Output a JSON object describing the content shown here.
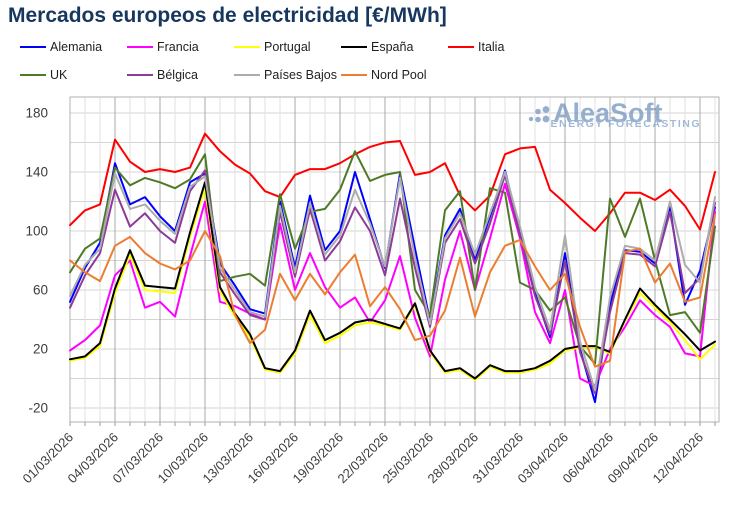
{
  "title": "Mercados europeos de electricidad [€/MWh]",
  "colors": {
    "title": "#17375E",
    "axis_text": "#3C3C3C",
    "grid_minor": "#E2E2E2",
    "grid_major_vertical": "#A8A8A8",
    "grid_horizontal": "#D4D4D4",
    "plot_border": "#B0B0B0",
    "watermark_text": "#7C9CC4",
    "watermark_subtitle": "#8AA8CD"
  },
  "watermark": {
    "name": "AleaSoft",
    "subtitle": "ENERGY FORECASTING"
  },
  "chart_data": {
    "type": "line",
    "title": "Mercados europeos de electricidad [€/MWh]",
    "xlabel": "",
    "ylabel": "€/MWh",
    "ylim": [
      -30,
      190
    ],
    "y_ticks": [
      -20,
      20,
      60,
      100,
      140,
      180
    ],
    "grid": true,
    "legend_position": "top",
    "x_tick_labels": [
      "01/03/2026",
      "04/03/2026",
      "07/03/2026",
      "10/03/2026",
      "13/03/2026",
      "16/03/2026",
      "19/03/2026",
      "22/03/2026",
      "25/03/2026",
      "28/03/2026",
      "31/03/2026",
      "03/04/2026",
      "06/04/2026",
      "09/04/2026",
      "12/04/2026"
    ],
    "x_dates": [
      "01/03/2026",
      "02/03/2026",
      "03/03/2026",
      "04/03/2026",
      "05/03/2026",
      "06/03/2026",
      "07/03/2026",
      "08/03/2026",
      "09/03/2026",
      "10/03/2026",
      "11/03/2026",
      "12/03/2026",
      "13/03/2026",
      "14/03/2026",
      "15/03/2026",
      "16/03/2026",
      "17/03/2026",
      "18/03/2026",
      "19/03/2026",
      "20/03/2026",
      "21/03/2026",
      "22/03/2026",
      "23/03/2026",
      "24/03/2026",
      "25/03/2026",
      "26/03/2026",
      "27/03/2026",
      "28/03/2026",
      "29/03/2026",
      "30/03/2026",
      "31/03/2026",
      "01/04/2026",
      "02/04/2026",
      "03/04/2026",
      "04/04/2026",
      "05/04/2026",
      "06/04/2026",
      "07/04/2026",
      "08/04/2026",
      "09/04/2026",
      "10/04/2026",
      "11/04/2026",
      "12/04/2026",
      "13/04/2026"
    ],
    "series": [
      {
        "name": "Alemania",
        "color": "#0000FF",
        "values": [
          52,
          75,
          92,
          146,
          118,
          123,
          110,
          100,
          133,
          139,
          78,
          63,
          47,
          44,
          120,
          75,
          124,
          87,
          100,
          140,
          108,
          75,
          139,
          88,
          39,
          97,
          115,
          80,
          110,
          141,
          100,
          58,
          28,
          85,
          20,
          -16,
          50,
          87,
          86,
          78,
          116,
          50,
          73,
          116
        ]
      },
      {
        "name": "Francia",
        "color": "#FF00FF",
        "values": [
          19,
          26,
          36,
          70,
          80,
          48,
          52,
          42,
          83,
          120,
          52,
          49,
          44,
          40,
          105,
          60,
          85,
          62,
          48,
          55,
          38,
          53,
          83,
          41,
          15,
          67,
          100,
          60,
          95,
          132,
          95,
          45,
          24,
          60,
          0,
          -5,
          20,
          35,
          53,
          43,
          35,
          17,
          15,
          113
        ]
      },
      {
        "name": "Portugal",
        "color": "#FFFF00",
        "values": [
          12,
          14,
          22,
          58,
          84,
          60,
          59,
          58,
          96,
          129,
          59,
          42,
          28,
          6,
          4,
          17,
          43,
          24,
          29,
          36,
          38,
          36,
          33,
          50,
          18,
          4,
          6,
          -1,
          8,
          4,
          4,
          6,
          10,
          19,
          21,
          21,
          17,
          39,
          58,
          48,
          38,
          26,
          13,
          23
        ]
      },
      {
        "name": "España",
        "color": "#000000",
        "values": [
          13,
          15,
          24,
          61,
          87,
          63,
          62,
          61,
          99,
          133,
          62,
          44,
          30,
          7,
          5,
          19,
          46,
          26,
          31,
          38,
          40,
          37,
          34,
          51,
          19,
          5,
          7,
          0,
          9,
          5,
          5,
          7,
          12,
          20,
          22,
          22,
          18,
          40,
          61,
          50,
          40,
          30,
          19,
          25
        ]
      },
      {
        "name": "Italia",
        "color": "#FF0000",
        "values": [
          104,
          114,
          118,
          162,
          147,
          140,
          142,
          140,
          143,
          166,
          154,
          145,
          139,
          127,
          123,
          138,
          142,
          142,
          146,
          152,
          157,
          160,
          161,
          138,
          140,
          146,
          124,
          114,
          124,
          152,
          156,
          157,
          128,
          119,
          109,
          100,
          112,
          126,
          126,
          121,
          128,
          117,
          101,
          140
        ]
      },
      {
        "name": "UK",
        "color": "#4E7A27",
        "values": [
          72,
          88,
          95,
          143,
          131,
          136,
          133,
          129,
          135,
          152,
          66,
          69,
          71,
          63,
          125,
          88,
          113,
          115,
          128,
          154,
          134,
          138,
          140,
          60,
          43,
          114,
          127,
          60,
          129,
          126,
          65,
          60,
          46,
          55,
          22,
          10,
          122,
          96,
          122,
          80,
          43,
          45,
          31,
          103
        ]
      },
      {
        "name": "Bélgica",
        "color": "#8E3A98",
        "values": [
          48,
          70,
          85,
          128,
          103,
          112,
          100,
          92,
          127,
          141,
          72,
          57,
          43,
          40,
          113,
          69,
          115,
          80,
          93,
          116,
          100,
          70,
          122,
          75,
          35,
          92,
          108,
          78,
          105,
          138,
          97,
          56,
          30,
          80,
          18,
          -10,
          45,
          85,
          84,
          76,
          113,
          58,
          68,
          119
        ]
      },
      {
        "name": "Países Bajos",
        "color": "#ACACAC",
        "values": [
          56,
          77,
          88,
          139,
          115,
          118,
          107,
          98,
          130,
          137,
          75,
          60,
          45,
          42,
          117,
          72,
          119,
          84,
          97,
          128,
          105,
          76,
          136,
          82,
          37,
          95,
          112,
          84,
          112,
          140,
          103,
          62,
          33,
          97,
          25,
          -8,
          55,
          90,
          88,
          80,
          120,
          77,
          65,
          123
        ]
      },
      {
        "name": "Nord Pool",
        "color": "#ED7D31",
        "values": [
          80,
          72,
          66,
          90,
          96,
          85,
          78,
          74,
          80,
          100,
          83,
          43,
          24,
          33,
          71,
          53,
          71,
          57,
          72,
          84,
          49,
          62,
          47,
          26,
          29,
          46,
          82,
          42,
          72,
          90,
          94,
          76,
          60,
          71,
          35,
          8,
          12,
          86,
          88,
          65,
          78,
          52,
          55,
          111
        ]
      }
    ]
  }
}
